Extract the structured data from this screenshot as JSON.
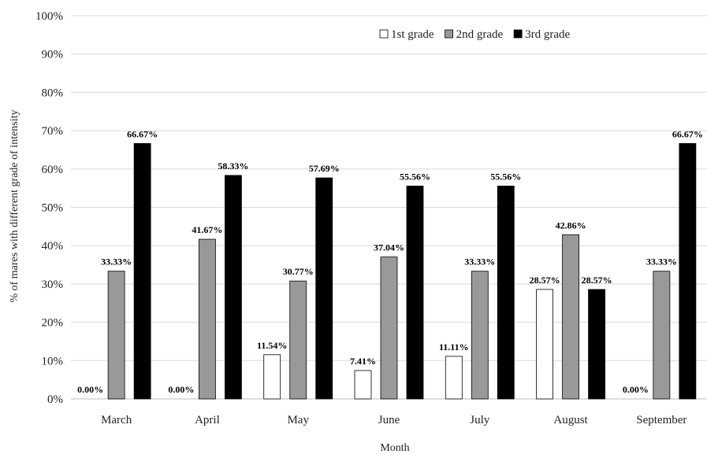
{
  "chart_data": {
    "type": "bar",
    "xlabel": "Month",
    "ylabel": "% of mares with different grade of intensity",
    "ylim": [
      0,
      100
    ],
    "yticks": [
      "0%",
      "10%",
      "20%",
      "30%",
      "40%",
      "50%",
      "60%",
      "70%",
      "80%",
      "90%",
      "100%"
    ],
    "categories": [
      "March",
      "April",
      "May",
      "June",
      "July",
      "August",
      "September"
    ],
    "series": [
      {
        "name": "1st grade",
        "color": "#ffffff",
        "values": [
          0,
          0,
          11.54,
          7.41,
          11.11,
          28.57,
          0
        ],
        "labels": [
          "0.00%",
          "0.00%",
          "11.54%",
          "7.41%",
          "11.11%",
          "28.57%",
          "0.00%"
        ]
      },
      {
        "name": "2nd grade",
        "color": "#999999",
        "values": [
          33.33,
          41.67,
          30.77,
          37.04,
          33.33,
          42.86,
          33.33
        ],
        "labels": [
          "33.33%",
          "41.67%",
          "30.77%",
          "37.04%",
          "33.33%",
          "42.86%",
          "33.33%"
        ]
      },
      {
        "name": "3rd grade",
        "color": "#000000",
        "values": [
          66.67,
          58.33,
          57.69,
          55.56,
          55.56,
          28.57,
          66.67
        ],
        "labels": [
          "66.67%",
          "58.33%",
          "57.69%",
          "55.56%",
          "55.56%",
          "28.57%",
          "66.67%"
        ]
      }
    ],
    "grid": true,
    "legend_position": "top-right"
  }
}
